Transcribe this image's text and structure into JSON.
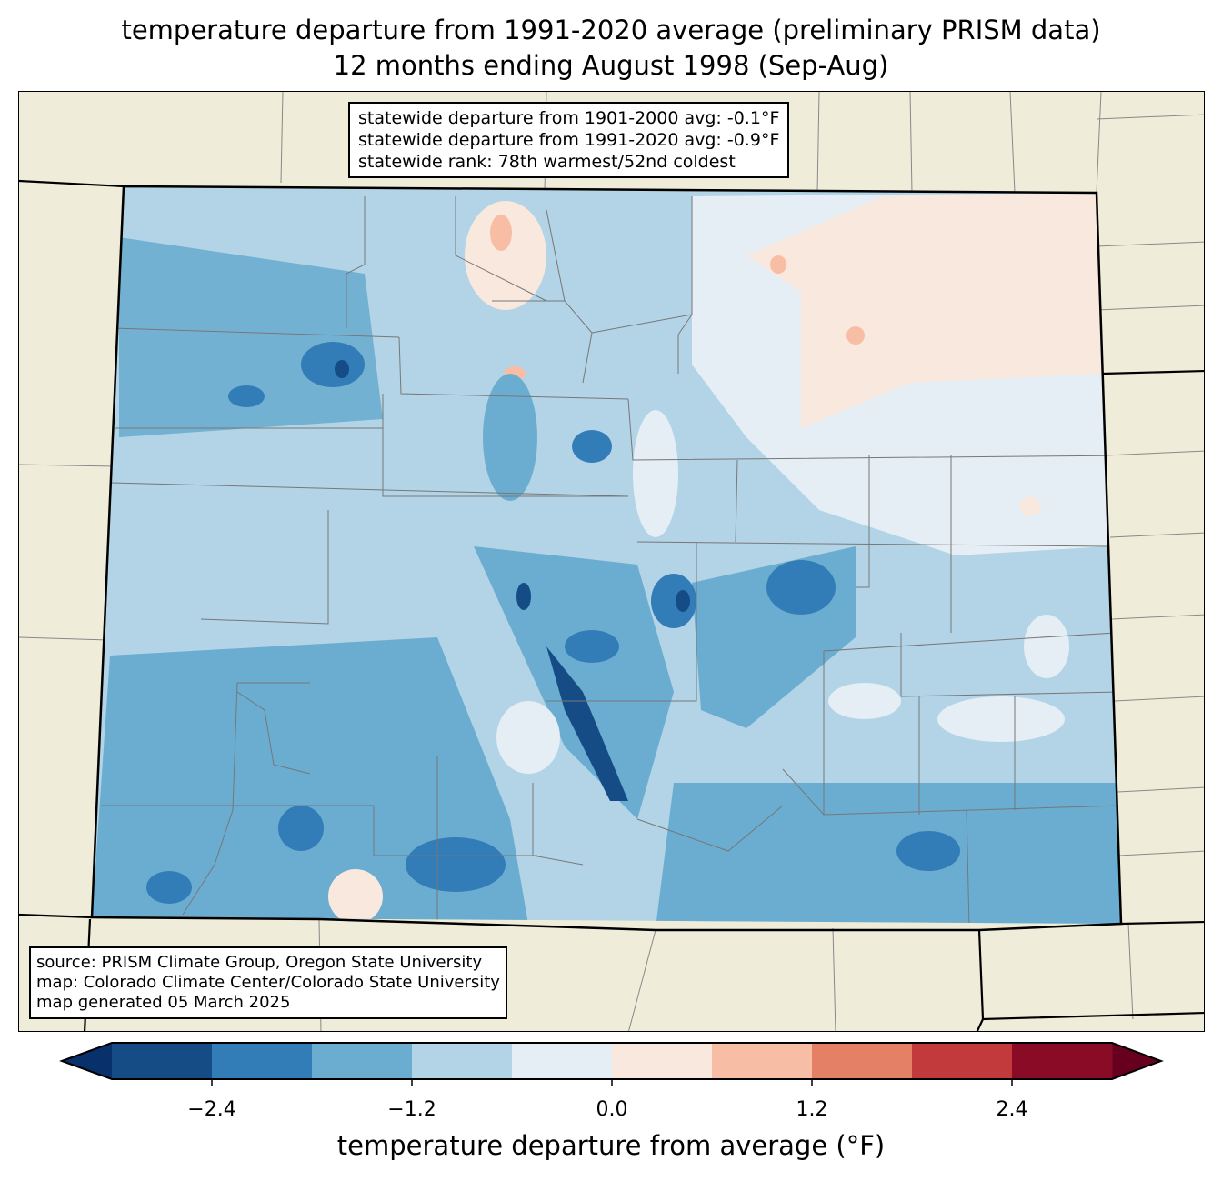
{
  "title": {
    "line1": "temperature departure from 1991-2020 average (preliminary PRISM data)",
    "line2": "12 months ending August 1998 (Sep-Aug)"
  },
  "stats": {
    "line1": "statewide departure from 1901-2000 avg: -0.1°F",
    "line2": "statewide departure from 1991-2020 avg: -0.9°F",
    "line3": "statewide rank: 78th warmest/52nd coldest"
  },
  "source": {
    "line1": "source: PRISM Climate Group, Oregon State University",
    "line2": "map: Colorado Climate Center/Colorado State University",
    "line3": "map generated 05 March 2025"
  },
  "colorbar": {
    "label": "temperature departure from average (°F)",
    "ticks": [
      "−2.4",
      "−1.2",
      "0.0",
      "1.2",
      "2.4"
    ],
    "bounds": [
      -3.0,
      -2.4,
      -1.8,
      -1.2,
      -0.6,
      0.0,
      0.6,
      1.2,
      1.8,
      2.4,
      3.0
    ],
    "colors": [
      "#154c85",
      "#327db8",
      "#6badd0",
      "#b2d4e6",
      "#e5eef4",
      "#f9e8de",
      "#f8bea5",
      "#e48066",
      "#c23a3b",
      "#8a0b25"
    ],
    "under_color": "#08306b",
    "over_color": "#67001f"
  },
  "colors": {
    "land": "#efedda",
    "dominant": "#b2d4e6"
  }
}
